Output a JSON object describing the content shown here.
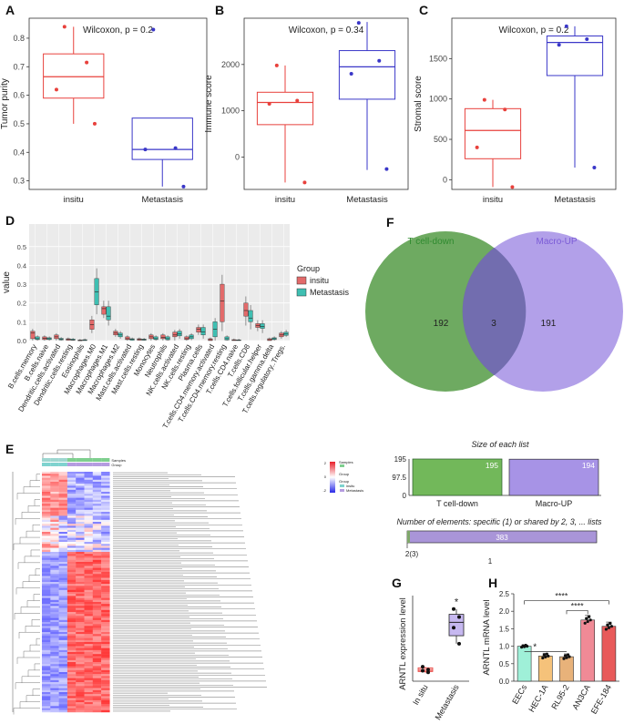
{
  "figure": {
    "panel_letters": [
      "A",
      "B",
      "C",
      "D",
      "E",
      "F",
      "G",
      "H"
    ]
  },
  "colors": {
    "insitu": "#e8413c",
    "metastasis": "#3a37c8",
    "d_insitu": "#e26a6a",
    "d_metastasis": "#3fbfb2",
    "venn_left": "#5a9e4b",
    "venn_right": "#a793e6",
    "bar_left": "#72b85a",
    "bar_right": "#a793e6"
  },
  "chart_data": [
    {
      "id": "A",
      "type": "box",
      "title": "Wilcoxon, p = 0.2",
      "xlabel": "",
      "ylabel": "Tumor purity",
      "categories": [
        "insitu",
        "Metastasis"
      ],
      "ylim": [
        0.27,
        0.87
      ],
      "yticks": [
        0.3,
        0.4,
        0.5,
        0.6,
        0.7,
        0.8
      ],
      "ytick_labels": [
        "0.3",
        "0.4",
        "0.5",
        "0.6",
        "0.7",
        "0.8"
      ],
      "boxes": [
        {
          "whisker_low": 0.5,
          "q1": 0.59,
          "median": 0.665,
          "q3": 0.745,
          "whisker_high": 0.84,
          "points": [
            0.84,
            0.715,
            0.62,
            0.5
          ]
        },
        {
          "whisker_low": 0.28,
          "q1": 0.375,
          "median": 0.41,
          "q3": 0.52,
          "whisker_high": 0.52,
          "points": [
            0.83,
            0.415,
            0.41,
            0.28
          ]
        }
      ]
    },
    {
      "id": "B",
      "type": "box",
      "title": "Wilcoxon, p = 0.34",
      "xlabel": "",
      "ylabel": "Immune score",
      "categories": [
        "insitu",
        "Metastasis"
      ],
      "ylim": [
        -700,
        3000
      ],
      "yticks": [
        0,
        1000,
        2000
      ],
      "ytick_labels": [
        "0",
        "1000",
        "2000"
      ],
      "boxes": [
        {
          "whisker_low": -550,
          "q1": 700,
          "median": 1180,
          "q3": 1400,
          "whisker_high": 1980,
          "points": [
            1980,
            1220,
            1150,
            -550
          ]
        },
        {
          "whisker_low": -280,
          "q1": 1250,
          "median": 1950,
          "q3": 2300,
          "whisker_high": 2920,
          "points": [
            2900,
            2080,
            1800,
            -260
          ]
        }
      ]
    },
    {
      "id": "C",
      "type": "box",
      "title": "Wilcoxon, p = 0.2",
      "xlabel": "",
      "ylabel": "Stromal score",
      "categories": [
        "insitu",
        "Metastasis"
      ],
      "ylim": [
        -120,
        2000
      ],
      "yticks": [
        0,
        500,
        1000,
        1500
      ],
      "ytick_labels": [
        "0",
        "500",
        "1000",
        "1500"
      ],
      "boxes": [
        {
          "whisker_low": -90,
          "q1": 260,
          "median": 610,
          "q3": 880,
          "whisker_high": 990,
          "points": [
            990,
            870,
            400,
            -90
          ]
        },
        {
          "whisker_low": 150,
          "q1": 1290,
          "median": 1700,
          "q3": 1780,
          "whisker_high": 1900,
          "points": [
            1900,
            1740,
            1670,
            150
          ]
        }
      ]
    },
    {
      "id": "D",
      "type": "box",
      "title": "",
      "xlabel": "",
      "ylabel": "value",
      "legend_title": "Group",
      "series": [
        "insitu",
        "Metastasis"
      ],
      "ylim": [
        0,
        0.62
      ],
      "yticks": [
        0,
        0.1,
        0.2,
        0.3,
        0.4,
        0.5
      ],
      "ytick_labels": [
        "0.0",
        "0.1",
        "0.2",
        "0.3",
        "0.4",
        "0.5"
      ],
      "categories": [
        "B.cells.memory",
        "B.cells.naive",
        "Dendritic.cells.activated",
        "Dendritic.cells.resting",
        "Eosinophils",
        "Macrophages.M0",
        "Macrophages.M1",
        "Macrophages.M2",
        "Mast.cells.activated",
        "Mast.cells.resting",
        "Monocytes",
        "Neutrophils",
        "NK.cells.activated",
        "NK.cells.resting",
        "Plasma.cells",
        "T.cells.CD4.memory.activated",
        "T.cells.CD4.memory.resting",
        "T.cells.CD4.naive",
        "T.cells.CD8",
        "T.cells.follicular.helper",
        "T.cells.gamma.delta",
        "T.cells.regulatory..Tregs."
      ],
      "insitu_box": [
        [
          0,
          0.01,
          0.04,
          0.05
        ],
        [
          0,
          0.005,
          0.012,
          0.02
        ],
        [
          0,
          0.01,
          0.02,
          0.03
        ],
        [
          0,
          0.002,
          0.006,
          0.01
        ],
        [
          0,
          0,
          0.001,
          0.003
        ],
        [
          0.04,
          0.06,
          0.085,
          0.11
        ],
        [
          0.12,
          0.14,
          0.17,
          0.18
        ],
        [
          0.02,
          0.03,
          0.04,
          0.05
        ],
        [
          0,
          0.005,
          0.01,
          0.02
        ],
        [
          0,
          0.002,
          0.006,
          0.01
        ],
        [
          0,
          0.01,
          0.02,
          0.03
        ],
        [
          0,
          0.01,
          0.018,
          0.03
        ],
        [
          0,
          0.02,
          0.03,
          0.045
        ],
        [
          0,
          0.005,
          0.01,
          0.02
        ],
        [
          0.03,
          0.045,
          0.06,
          0.07
        ],
        [
          0,
          0,
          0.005,
          0.01
        ],
        [
          0.05,
          0.1,
          0.21,
          0.3
        ],
        [
          0,
          0,
          0.002,
          0.005
        ],
        [
          0.08,
          0.13,
          0.16,
          0.2
        ],
        [
          0.05,
          0.07,
          0.08,
          0.09
        ],
        [
          0,
          0,
          0.005,
          0.01
        ],
        [
          0.01,
          0.02,
          0.03,
          0.04
        ]
      ],
      "metastasis_box": [
        [
          0,
          0.005,
          0.01,
          0.02
        ],
        [
          0,
          0.005,
          0.01,
          0.015
        ],
        [
          0,
          0.003,
          0.008,
          0.012
        ],
        [
          0,
          0.002,
          0.004,
          0.008
        ],
        [
          0,
          0,
          0.002,
          0.005
        ],
        [
          0.14,
          0.19,
          0.26,
          0.33
        ],
        [
          0.08,
          0.11,
          0.13,
          0.18
        ],
        [
          0.01,
          0.02,
          0.03,
          0.04
        ],
        [
          0,
          0.002,
          0.006,
          0.01
        ],
        [
          0,
          0.002,
          0.005,
          0.008
        ],
        [
          0,
          0.005,
          0.01,
          0.02
        ],
        [
          0,
          0.004,
          0.01,
          0.02
        ],
        [
          0.01,
          0.025,
          0.035,
          0.05
        ],
        [
          0.002,
          0.01,
          0.02,
          0.03
        ],
        [
          0.01,
          0.03,
          0.045,
          0.07
        ],
        [
          0,
          0.02,
          0.06,
          0.1
        ],
        [
          0,
          0.003,
          0.01,
          0.02
        ],
        [
          0,
          0,
          0.002,
          0.004
        ],
        [
          0.06,
          0.1,
          0.12,
          0.16
        ],
        [
          0.04,
          0.065,
          0.075,
          0.09
        ],
        [
          0,
          0.005,
          0.01,
          0.015
        ],
        [
          0.02,
          0.028,
          0.035,
          0.045
        ]
      ]
    },
    {
      "id": "F",
      "type": "venn",
      "sets": [
        "T cell-down",
        "Macro-UP"
      ],
      "left_only": 192,
      "intersection": 3,
      "right_only": 191
    },
    {
      "id": "F2",
      "type": "bar",
      "title": "Size of each list",
      "categories": [
        "T cell-down",
        "Macro-UP"
      ],
      "values": [
        195,
        194
      ],
      "yticks": [
        0,
        97.5,
        195
      ],
      "ytick_labels": [
        "0",
        "97.5",
        "195"
      ],
      "ylim": [
        0,
        195
      ]
    },
    {
      "id": "F3",
      "type": "bar",
      "title": "Number of elements: specific (1) or shared by 2, 3, ... lists",
      "categories": [
        "1",
        "2(3)"
      ],
      "values": [
        383,
        3
      ]
    },
    {
      "id": "G",
      "type": "box",
      "xlabel": "",
      "ylabel": "ARNTL expression level",
      "categories": [
        "In situ",
        "Metastasis"
      ],
      "significance": "*",
      "ylim": [
        0,
        32
      ],
      "boxes": [
        {
          "whisker_low": 3,
          "q1": 3.6,
          "median": 4.1,
          "q3": 5,
          "whisker_high": 5.4,
          "points": [
            5.4,
            4.3,
            3.9,
            3.3
          ]
        },
        {
          "whisker_low": 14,
          "q1": 17,
          "median": 22,
          "q3": 25,
          "whisker_high": 27,
          "points": [
            27,
            24,
            20,
            14
          ]
        }
      ]
    },
    {
      "id": "H",
      "type": "bar",
      "xlabel": "",
      "ylabel": "ARNTL mRNA level",
      "categories": [
        "EECs",
        "HEC-1A",
        "RL95-2",
        "AN3CA",
        "EFE-184"
      ],
      "values": [
        1.0,
        0.72,
        0.7,
        1.75,
        1.57
      ],
      "errors": [
        0.04,
        0.08,
        0.08,
        0.13,
        0.12
      ],
      "ylim": [
        0,
        2.5
      ],
      "yticks": [
        0,
        0.5,
        1.0,
        1.5,
        2.0,
        2.5
      ],
      "ytick_labels": [
        "0.0",
        "0.5",
        "1.0",
        "1.5",
        "2.0",
        "2.5"
      ],
      "bar_colors": [
        "#9ff0d8",
        "#f5c27a",
        "#e8b27a",
        "#f08a96",
        "#e85a5a"
      ],
      "significance": [
        "*",
        "****",
        "****"
      ]
    }
  ],
  "heatmap": {
    "annotation_labels": [
      "Samples",
      "Group"
    ],
    "legend_group_title": "Group",
    "legend_group_items": [
      "insitu",
      "Metastasis"
    ],
    "legend_scale_labels": [
      "2",
      "0",
      "-2"
    ]
  }
}
